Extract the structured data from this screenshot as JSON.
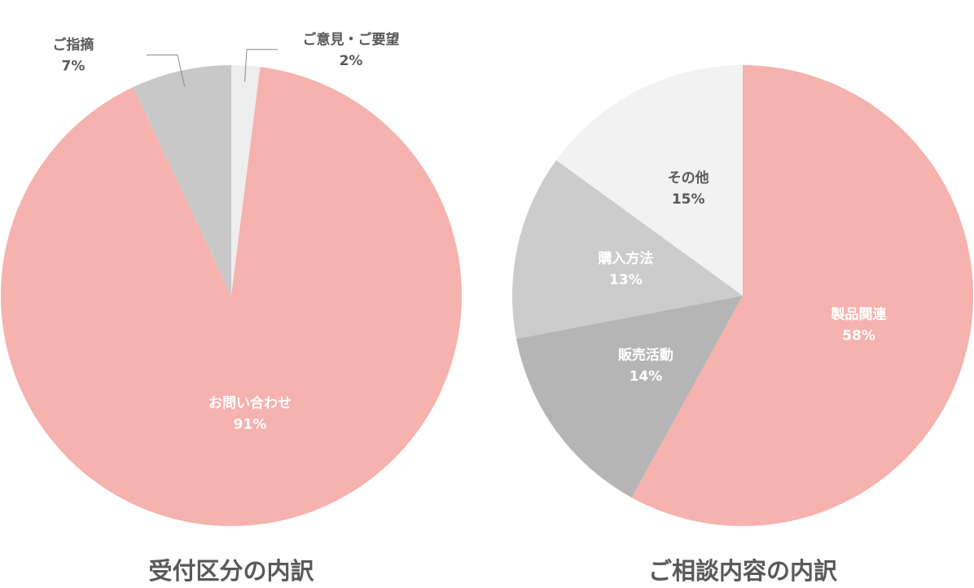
{
  "chart_data": [
    {
      "type": "pie",
      "title": "受付区分の内訳",
      "categories": [
        "ご意見・ご要望",
        "お問い合わせ",
        "ご指摘"
      ],
      "values": [
        2,
        91,
        7
      ],
      "value_labels": [
        "2%",
        "91%",
        "7%"
      ],
      "colors": [
        "#eeeeee",
        "#f5b2ae",
        "#c8c8c8"
      ]
    },
    {
      "type": "pie",
      "title": "ご相談内容の内訳",
      "categories": [
        "製品関連",
        "販売活動",
        "購入方法",
        "その他"
      ],
      "values": [
        58,
        14,
        13,
        15
      ],
      "value_labels": [
        "58%",
        "14%",
        "13%",
        "15%"
      ],
      "colors": [
        "#f5b2ae",
        "#b5b5b5",
        "#cccccc",
        "#f2f2f2"
      ]
    }
  ]
}
